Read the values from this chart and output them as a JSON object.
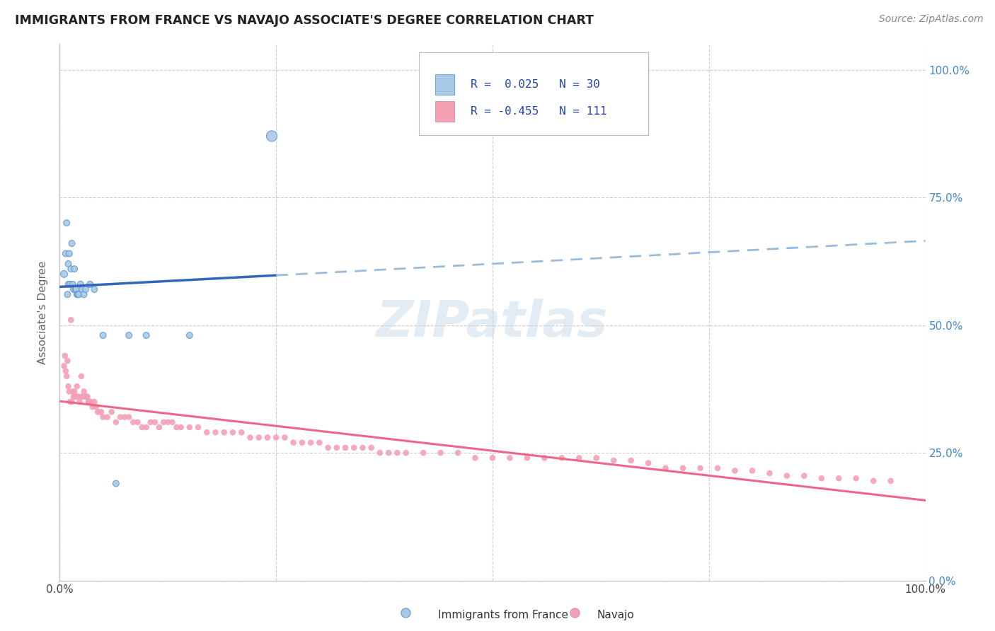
{
  "title": "IMMIGRANTS FROM FRANCE VS NAVAJO ASSOCIATE'S DEGREE CORRELATION CHART",
  "source": "Source: ZipAtlas.com",
  "ylabel": "Associate's Degree",
  "yticks": [
    "0.0%",
    "25.0%",
    "50.0%",
    "75.0%",
    "100.0%"
  ],
  "ytick_vals": [
    0.0,
    0.25,
    0.5,
    0.75,
    1.0
  ],
  "color_blue": "#A8C8E8",
  "color_pink": "#F4A0B5",
  "trendline_blue_solid": "#3366BB",
  "trendline_blue_dash": "#99BBDD",
  "trendline_pink": "#EE6688",
  "watermark": "ZIPatlas",
  "france_x": [
    0.005,
    0.007,
    0.008,
    0.009,
    0.01,
    0.01,
    0.011,
    0.012,
    0.013,
    0.014,
    0.015,
    0.016,
    0.017,
    0.018,
    0.019,
    0.02,
    0.021,
    0.022,
    0.024,
    0.026,
    0.028,
    0.03,
    0.035,
    0.04,
    0.05,
    0.065,
    0.08,
    0.1,
    0.15,
    0.245
  ],
  "france_y": [
    0.6,
    0.64,
    0.7,
    0.56,
    0.62,
    0.58,
    0.64,
    0.58,
    0.61,
    0.66,
    0.58,
    0.57,
    0.61,
    0.57,
    0.57,
    0.56,
    0.56,
    0.56,
    0.58,
    0.57,
    0.56,
    0.57,
    0.58,
    0.57,
    0.48,
    0.19,
    0.48,
    0.48,
    0.48,
    0.87
  ],
  "france_sizes": [
    50,
    40,
    40,
    40,
    40,
    40,
    40,
    40,
    40,
    40,
    40,
    40,
    40,
    40,
    40,
    40,
    40,
    40,
    40,
    40,
    40,
    40,
    40,
    40,
    40,
    40,
    40,
    40,
    40,
    120
  ],
  "navajo_x": [
    0.005,
    0.006,
    0.007,
    0.008,
    0.009,
    0.01,
    0.011,
    0.012,
    0.013,
    0.014,
    0.015,
    0.016,
    0.017,
    0.018,
    0.019,
    0.02,
    0.021,
    0.022,
    0.023,
    0.025,
    0.026,
    0.027,
    0.028,
    0.03,
    0.031,
    0.032,
    0.033,
    0.034,
    0.035,
    0.036,
    0.038,
    0.04,
    0.042,
    0.044,
    0.046,
    0.048,
    0.05,
    0.055,
    0.06,
    0.065,
    0.07,
    0.075,
    0.08,
    0.085,
    0.09,
    0.095,
    0.1,
    0.105,
    0.11,
    0.115,
    0.12,
    0.125,
    0.13,
    0.135,
    0.14,
    0.15,
    0.16,
    0.17,
    0.18,
    0.19,
    0.2,
    0.21,
    0.22,
    0.23,
    0.24,
    0.25,
    0.26,
    0.27,
    0.28,
    0.29,
    0.3,
    0.31,
    0.32,
    0.33,
    0.34,
    0.35,
    0.36,
    0.37,
    0.38,
    0.39,
    0.4,
    0.42,
    0.44,
    0.46,
    0.48,
    0.5,
    0.52,
    0.54,
    0.56,
    0.58,
    0.6,
    0.62,
    0.64,
    0.66,
    0.68,
    0.7,
    0.72,
    0.74,
    0.76,
    0.78,
    0.8,
    0.82,
    0.84,
    0.86,
    0.88,
    0.9,
    0.92,
    0.94,
    0.96
  ],
  "navajo_y": [
    0.42,
    0.44,
    0.41,
    0.4,
    0.43,
    0.38,
    0.37,
    0.35,
    0.51,
    0.35,
    0.37,
    0.36,
    0.37,
    0.36,
    0.36,
    0.38,
    0.36,
    0.36,
    0.35,
    0.4,
    0.36,
    0.36,
    0.37,
    0.36,
    0.36,
    0.36,
    0.35,
    0.35,
    0.35,
    0.35,
    0.34,
    0.35,
    0.34,
    0.33,
    0.33,
    0.33,
    0.32,
    0.32,
    0.33,
    0.31,
    0.32,
    0.32,
    0.32,
    0.31,
    0.31,
    0.3,
    0.3,
    0.31,
    0.31,
    0.3,
    0.31,
    0.31,
    0.31,
    0.3,
    0.3,
    0.3,
    0.3,
    0.29,
    0.29,
    0.29,
    0.29,
    0.29,
    0.28,
    0.28,
    0.28,
    0.28,
    0.28,
    0.27,
    0.27,
    0.27,
    0.27,
    0.26,
    0.26,
    0.26,
    0.26,
    0.26,
    0.26,
    0.25,
    0.25,
    0.25,
    0.25,
    0.25,
    0.25,
    0.25,
    0.24,
    0.24,
    0.24,
    0.24,
    0.24,
    0.24,
    0.24,
    0.24,
    0.235,
    0.235,
    0.23,
    0.22,
    0.22,
    0.22,
    0.22,
    0.215,
    0.215,
    0.21,
    0.205,
    0.205,
    0.2,
    0.2,
    0.2,
    0.195,
    0.195
  ]
}
